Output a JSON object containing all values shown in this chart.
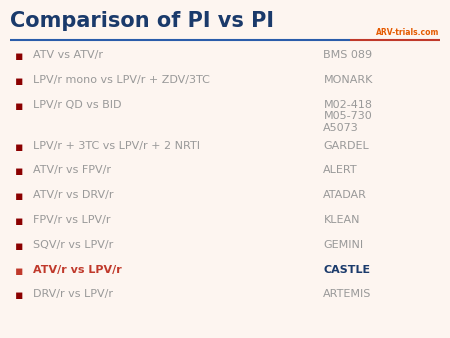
{
  "title": "Comparison of PI vs PI",
  "title_color": "#1a3a6b",
  "title_fontsize": 15,
  "title_bold": true,
  "background_color": "#fdf5f0",
  "separator_line_colors": [
    "#2a5caa",
    "#c0392b"
  ],
  "bullet_color_normal": "#8b0000",
  "bullet_color_highlight": "#c0392b",
  "text_color_normal": "#999999",
  "text_color_highlight": "#c0392b",
  "study_color_normal": "#999999",
  "study_color_highlight": "#1a3a6b",
  "rows": [
    {
      "left": "ATV vs ATV/r",
      "right": "BMS 089",
      "highlight": false,
      "multi": false
    },
    {
      "left": "LPV/r mono vs LPV/r + ZDV/3TC",
      "right": "MONARK",
      "highlight": false,
      "multi": false
    },
    {
      "left": "LPV/r QD vs BID",
      "right": "M02-418\nM05-730\nA5073",
      "highlight": false,
      "multi": true
    },
    {
      "left": "LPV/r + 3TC vs LPV/r + 2 NRTI",
      "right": "GARDEL",
      "highlight": false,
      "multi": false
    },
    {
      "left": "ATV/r vs FPV/r",
      "right": "ALERT",
      "highlight": false,
      "multi": false
    },
    {
      "left": "ATV/r vs DRV/r",
      "right": "ATADAR",
      "highlight": false,
      "multi": false
    },
    {
      "left": "FPV/r vs LPV/r",
      "right": "KLEAN",
      "highlight": false,
      "multi": false
    },
    {
      "left": "SQV/r vs LPV/r",
      "right": "GEMINI",
      "highlight": false,
      "multi": false
    },
    {
      "left": "ATV/r vs LPV/r",
      "right": "CASTLE",
      "highlight": true,
      "multi": false
    },
    {
      "left": "DRV/r vs LPV/r",
      "right": "ARTEMIS",
      "highlight": false,
      "multi": false
    }
  ],
  "logo_text": "ARV-trials.com",
  "logo_color": "#e55a00"
}
